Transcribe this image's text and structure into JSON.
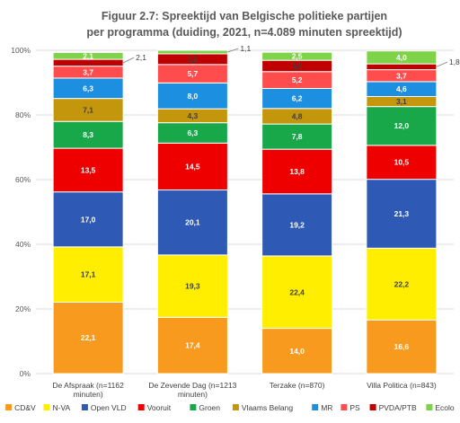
{
  "chart_data": {
    "type": "bar",
    "stacked": true,
    "title_lines": [
      "Figuur 2.7: Spreektijd van Belgische politieke partijen",
      "per programma (duiding, 2021, n=4.089 minuten spreektijd)"
    ],
    "categories": [
      [
        "De Afspraak (n=1162",
        "minuten)"
      ],
      [
        "De Zevende Dag (n=1213",
        "minuten)"
      ],
      [
        "Terzake (n=870)"
      ],
      [
        "Villa Politica (n=843)"
      ]
    ],
    "y_ticks": [
      "0%",
      "20%",
      "40%",
      "60%",
      "80%",
      "100%"
    ],
    "ylim": [
      0,
      100
    ],
    "grid": true,
    "legend_position": "bottom",
    "series": [
      {
        "name": "CD&V",
        "color": "#f79a1e",
        "text_color": "#ffffff",
        "values": [
          22.1,
          17.4,
          14.0,
          16.6
        ],
        "labels": [
          "22,1",
          "17,4",
          "14,0",
          "16,6"
        ]
      },
      {
        "name": "N-VA",
        "color": "#ffee00",
        "text_color": "#404040",
        "values": [
          17.1,
          19.3,
          22.4,
          22.2
        ],
        "labels": [
          "17,1",
          "19,3",
          "22,4",
          "22,2"
        ]
      },
      {
        "name": "Open VLD",
        "color": "#2e59b5",
        "text_color": "#ffffff",
        "values": [
          17.0,
          20.1,
          19.2,
          21.3
        ],
        "labels": [
          "17,0",
          "20,1",
          "19,2",
          "21,3"
        ]
      },
      {
        "name": "Vooruit",
        "color": "#ee0000",
        "text_color": "#ffffff",
        "values": [
          13.5,
          14.5,
          13.8,
          10.5
        ],
        "labels": [
          "13,5",
          "14,5",
          "13,8",
          "10,5"
        ]
      },
      {
        "name": "Groen",
        "color": "#18a84a",
        "text_color": "#ffffff",
        "values": [
          8.3,
          6.3,
          7.8,
          12.0
        ],
        "labels": [
          "8,3",
          "6,3",
          "7,8",
          "12,0"
        ]
      },
      {
        "name": "Vlaams Belang",
        "color": "#c4960c",
        "text_color": "#404040",
        "values": [
          7.1,
          4.3,
          4.8,
          3.1
        ],
        "labels": [
          "7,1",
          "4,3",
          "4,8",
          "3,1"
        ]
      },
      {
        "name": "MR",
        "color": "#1d8fe0",
        "text_color": "#ffffff",
        "values": [
          6.3,
          8.0,
          6.2,
          4.6
        ],
        "labels": [
          "6,3",
          "8,0",
          "6,2",
          "4,6"
        ]
      },
      {
        "name": "PS",
        "color": "#ff4d4d",
        "text_color": "#ffffff",
        "values": [
          3.7,
          5.7,
          5.2,
          3.7
        ],
        "labels": [
          "3,7",
          "5,7",
          "5,2",
          "3,7"
        ]
      },
      {
        "name": "PVDA/PTB",
        "color": "#c00000",
        "text_color": "#404040",
        "values": [
          2.1,
          3.3,
          3.5,
          1.8
        ],
        "labels": [
          "2,1",
          "3,3",
          "3,5",
          "1,8"
        ],
        "callout": [
          true,
          false,
          false,
          true
        ]
      },
      {
        "name": "Ecolo",
        "color": "#7ed348",
        "text_color": "#ffffff",
        "values": [
          2.1,
          1.1,
          2.5,
          4.0
        ],
        "labels": [
          "2,1",
          "1,1",
          "2,5",
          "4,0"
        ],
        "callout": [
          false,
          true,
          false,
          false
        ]
      }
    ]
  }
}
